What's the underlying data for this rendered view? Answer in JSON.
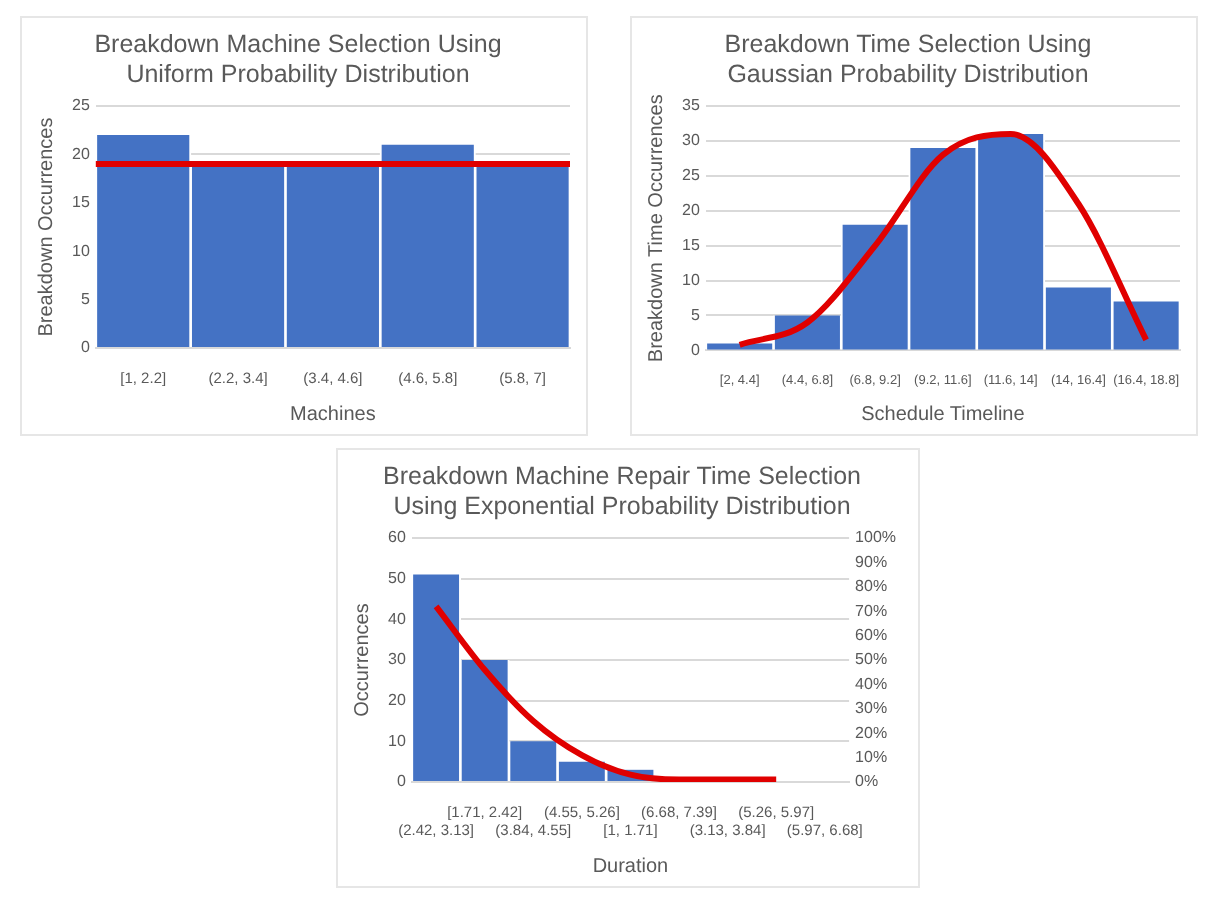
{
  "chart_data": [
    {
      "type": "bar",
      "title": "Breakdown Machine Selection Using Uniform Probability Distribution",
      "xlabel": "Machines",
      "ylabel": "Breakdown Occurrences",
      "categories": [
        "[1, 2.2]",
        "(2.2, 3.4]",
        "(3.4, 4.6]",
        "(4.6, 5.8]",
        "(5.8, 7]"
      ],
      "series": [
        {
          "color": "#4472c4",
          "values": [
            22,
            19,
            19,
            21,
            19
          ]
        }
      ],
      "ylim": [
        0,
        25
      ],
      "yticks": [
        0,
        5,
        10,
        15,
        20,
        25
      ],
      "grid": "y",
      "ref_lines": [
        {
          "axis": "y",
          "value": 19,
          "color": "#e00000"
        }
      ]
    },
    {
      "type": "bar",
      "title": "Breakdown Time Selection Using Gaussian Probability Distribution",
      "xlabel": "Schedule Timeline",
      "ylabel": "Breakdown Time Occurrences",
      "categories": [
        "[2, 4.4]",
        "(4.4, 6.8]",
        "(6.8, 9.2]",
        "(9.2, 11.6]",
        "(11.6, 14]",
        "(14, 16.4]",
        "(16.4, 18.8]"
      ],
      "series": [
        {
          "color": "#4472c4",
          "values": [
            1,
            5,
            18,
            29,
            31,
            9,
            7
          ]
        },
        {
          "type": "line",
          "color": "#e00000",
          "values": [
            0.8,
            4,
            15,
            28,
            31,
            21,
            1.5
          ]
        }
      ],
      "ylim": [
        0,
        35
      ],
      "yticks": [
        0,
        5,
        10,
        15,
        20,
        25,
        30,
        35
      ],
      "grid": "y",
      "marker": "none"
    },
    {
      "type": "bar",
      "title": "Breakdown Machine Repair Time Selection Using Exponential Probability Distribution",
      "xlabel": "Duration",
      "ylabel": "Occurrences",
      "categories": [
        "(2.42, 3.13]",
        "[1.71, 2.42]",
        "(3.84, 4.55]",
        "(4.55, 5.26]",
        "[1, 1.71]",
        "(6.68, 7.39]",
        "(3.13, 3.84]",
        "(5.26, 5.97]",
        "(5.97, 6.68]"
      ],
      "series": [
        {
          "color": "#4472c4",
          "values": [
            51,
            30,
            10,
            5,
            3,
            0,
            0,
            0,
            0
          ]
        },
        {
          "type": "line",
          "axis": "y2",
          "color": "#e00000",
          "values": [
            72,
            46,
            25,
            11,
            3,
            1,
            1,
            1,
            null
          ]
        }
      ],
      "ylim": [
        0,
        60
      ],
      "yticks": [
        0,
        10,
        20,
        30,
        40,
        50,
        60
      ],
      "y2lim": [
        0,
        100
      ],
      "y2ticks": [
        {
          "value": 0,
          "label": "0%"
        },
        {
          "value": 10,
          "label": "10%"
        },
        {
          "value": 20,
          "label": "20%"
        },
        {
          "value": 30,
          "label": "30%"
        },
        {
          "value": 40,
          "label": "40%"
        },
        {
          "value": 50,
          "label": "50%"
        },
        {
          "value": 60,
          "label": "60%"
        },
        {
          "value": 70,
          "label": "70%"
        },
        {
          "value": 80,
          "label": "80%"
        },
        {
          "value": 90,
          "label": "90%"
        },
        {
          "value": 100,
          "label": "100%"
        }
      ],
      "grid": "y",
      "marker": "none"
    }
  ]
}
